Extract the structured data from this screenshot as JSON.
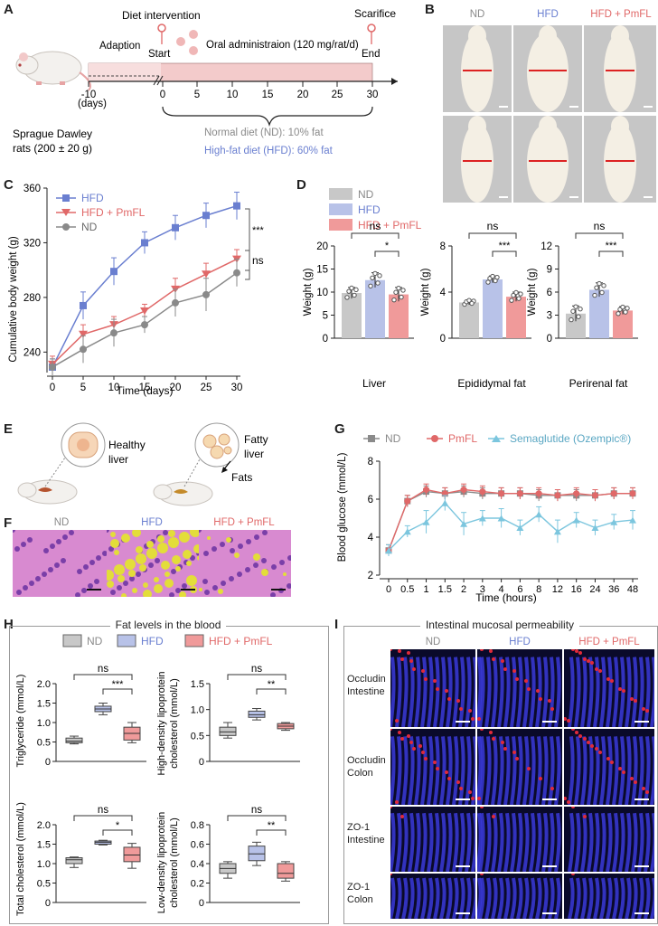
{
  "panelA": {
    "letter": "A",
    "diet_intervention": "Diet intervention",
    "scarifice": "Scarifice",
    "adaption": "Adaption",
    "start": "Start",
    "oral": "Oral administraion (120 mg/rat/d)",
    "end": "End",
    "ticks": [
      "-10",
      "0",
      "5",
      "10",
      "15",
      "20",
      "25",
      "30"
    ],
    "days": "(days)",
    "rat_label1": "Sprague Dawley",
    "rat_label2": "rats (200 ± 20 g)",
    "normal_diet": "Normal diet (ND): 10% fat",
    "high_fat": "High-fat diet (HFD): 60% fat",
    "colors": {
      "nd": "#8a8a8a",
      "hfd": "#6a7fd0",
      "pmfl": "#e06868"
    }
  },
  "panelB": {
    "letter": "B",
    "labels": [
      "ND",
      "HFD",
      "HFD + PmFL"
    ]
  },
  "panelC": {
    "letter": "C",
    "ylabel": "Cumulative body weight (g)",
    "xlabel": "Time (days)",
    "legend": [
      "HFD",
      "HFD + PmFL",
      "ND"
    ],
    "sig1": "***",
    "sig2": "ns"
  },
  "panelD": {
    "letter": "D",
    "legend": [
      "ND",
      "HFD",
      "HFD + PmFL"
    ],
    "ylabel": "Weight (g)",
    "titles": [
      "Liver",
      "Epididymal fat",
      "Perirenal fat"
    ],
    "ns": "ns",
    "sig": [
      "*",
      "***",
      "***"
    ]
  },
  "panelE": {
    "letter": "E",
    "healthy": "Healthy",
    "healthy2": "liver",
    "fatty": "Fatty",
    "fatty2": "liver",
    "fats": "Fats"
  },
  "panelF": {
    "letter": "F",
    "labels": [
      "ND",
      "HFD",
      "HFD + PmFL"
    ]
  },
  "panelG": {
    "letter": "G",
    "legend": [
      "ND",
      "PmFL",
      "Semaglutide (Ozempic®)"
    ],
    "ylabel": "Blood glucose (mmol/L)",
    "xlabel": "Time (hours)"
  },
  "panelH": {
    "letter": "H",
    "title": "Fat levels in the blood",
    "legend": [
      "ND",
      "HFD",
      "HFD + PmFL"
    ],
    "ylabels": [
      "Triglyceride (mmol/L)",
      "High-density lipoprotein",
      "cholesterol (mmol/L)",
      "Total cholesterol (mmol/L)",
      "Low-density lipoprotein",
      "cholesterol (mmol/L)"
    ],
    "ns": "ns",
    "sigs": [
      "***",
      "**",
      "*",
      "**"
    ]
  },
  "panelI": {
    "letter": "I",
    "title": "Intestinal mucosal permeability",
    "cols": [
      "ND",
      "HFD",
      "HFD + PmFL"
    ],
    "rows": [
      [
        "Occludin",
        "Intestine"
      ],
      [
        "Occludin",
        "Colon"
      ],
      [
        "ZO-1",
        "Intestine"
      ],
      [
        "ZO-1",
        "Colon"
      ]
    ]
  },
  "chart_data": [
    {
      "id": "C",
      "type": "line",
      "x": [
        0,
        5,
        10,
        15,
        20,
        25,
        30
      ],
      "xlim": [
        0,
        30
      ],
      "ylim": [
        225,
        360
      ],
      "yticks": [
        240,
        280,
        320,
        360
      ],
      "xlabel": "Time (days)",
      "ylabel": "Cumulative body weight (g)",
      "series": [
        {
          "name": "HFD",
          "values": [
            229,
            274,
            299,
            320,
            331,
            340,
            347
          ],
          "err": [
            6,
            10,
            10,
            8,
            9,
            9,
            10
          ],
          "color": "#6a7fd0"
        },
        {
          "name": "HFD + PmFL",
          "values": [
            231,
            253,
            260,
            270,
            286,
            297,
            308
          ],
          "err": [
            6,
            7,
            6,
            5,
            8,
            8,
            7
          ],
          "color": "#e06868"
        },
        {
          "name": "ND",
          "values": [
            229,
            242,
            254,
            260,
            276,
            282,
            298
          ],
          "err": [
            6,
            10,
            10,
            6,
            10,
            12,
            10
          ],
          "color": "#8a8a8a"
        }
      ]
    },
    {
      "id": "D",
      "type": "bar",
      "categories": [
        "ND",
        "HFD",
        "HFD + PmFL"
      ],
      "subplots": [
        {
          "title": "Liver",
          "ylim": [
            0,
            20
          ],
          "yticks": [
            0,
            5,
            10,
            15,
            20
          ],
          "values": [
            9.8,
            12.6,
            9.5
          ],
          "err": [
            1.2,
            1.6,
            1.5
          ]
        },
        {
          "title": "Epididymal fat",
          "ylim": [
            0,
            8
          ],
          "yticks": [
            0,
            4,
            8
          ],
          "values": [
            3.1,
            5.1,
            3.6
          ],
          "err": [
            0.2,
            0.3,
            0.4
          ]
        },
        {
          "title": "Perirenal fat",
          "ylim": [
            0,
            12
          ],
          "yticks": [
            0,
            3,
            6,
            9,
            12
          ],
          "values": [
            3.2,
            6.3,
            3.6
          ],
          "err": [
            1.0,
            0.9,
            0.5
          ]
        }
      ]
    },
    {
      "id": "G",
      "type": "line",
      "categories": [
        "0",
        "0.5",
        "1",
        "1.5",
        "2",
        "3",
        "4",
        "6",
        "8",
        "12",
        "16",
        "24",
        "36",
        "48"
      ],
      "ylim": [
        2,
        8
      ],
      "yticks": [
        2,
        4,
        6,
        8
      ],
      "xlabel": "Time (hours)",
      "ylabel": "Blood glucose (mmol/L)",
      "series": [
        {
          "name": "ND",
          "values": [
            3.3,
            5.9,
            6.4,
            6.3,
            6.4,
            6.3,
            6.3,
            6.3,
            6.2,
            6.2,
            6.2,
            6.2,
            6.3,
            6.3
          ],
          "err": [
            0.3,
            0.3,
            0.3,
            0.3,
            0.3,
            0.3,
            0.3,
            0.3,
            0.3,
            0.3,
            0.3,
            0.3,
            0.3,
            0.3
          ],
          "color": "#8a8a8a"
        },
        {
          "name": "PmFL",
          "values": [
            3.3,
            5.9,
            6.5,
            6.3,
            6.5,
            6.4,
            6.3,
            6.3,
            6.3,
            6.2,
            6.3,
            6.2,
            6.3,
            6.3
          ],
          "err": [
            0.3,
            0.3,
            0.3,
            0.3,
            0.3,
            0.3,
            0.3,
            0.3,
            0.3,
            0.3,
            0.3,
            0.3,
            0.3,
            0.3
          ],
          "color": "#e06868"
        },
        {
          "name": "Semaglutide (Ozempic®)",
          "values": [
            3.3,
            4.3,
            4.8,
            5.8,
            4.7,
            5.0,
            5.0,
            4.5,
            5.2,
            4.3,
            4.9,
            4.5,
            4.8,
            4.9
          ],
          "err": [
            0.3,
            0.3,
            0.6,
            0.4,
            0.6,
            0.4,
            0.5,
            0.4,
            0.4,
            0.6,
            0.4,
            0.4,
            0.4,
            0.5
          ],
          "color": "#7cc6de"
        }
      ]
    },
    {
      "id": "H",
      "type": "box",
      "categories": [
        "ND",
        "HFD",
        "HFD + PmFL"
      ],
      "subplots": [
        {
          "ylabel": "Triglyceride (mmol/L)",
          "ylim": [
            0,
            2.0
          ],
          "yticks": [
            "0",
            "0.5",
            "1.0",
            "1.5",
            "2.0"
          ],
          "boxes": [
            [
              0.45,
              0.48,
              0.52,
              0.6,
              0.65
            ],
            [
              1.2,
              1.28,
              1.35,
              1.42,
              1.5
            ],
            [
              0.48,
              0.55,
              0.72,
              0.88,
              1.0
            ]
          ]
        },
        {
          "ylabel": "High-density lipoprotein cholesterol (mmol/L)",
          "ylim": [
            0,
            1.5
          ],
          "yticks": [
            "0",
            "0.5",
            "1.0",
            "1.5"
          ],
          "boxes": [
            [
              0.45,
              0.5,
              0.57,
              0.66,
              0.75
            ],
            [
              0.8,
              0.85,
              0.9,
              0.97,
              1.02
            ],
            [
              0.6,
              0.63,
              0.68,
              0.73,
              0.75
            ]
          ]
        },
        {
          "ylabel": "Total cholesterol (mmol/L)",
          "ylim": [
            0,
            2.0
          ],
          "yticks": [
            "0",
            "0.5",
            "1.0",
            "1.5",
            "2.0"
          ],
          "boxes": [
            [
              0.9,
              1.0,
              1.1,
              1.15,
              1.17
            ],
            [
              1.48,
              1.5,
              1.55,
              1.58,
              1.6
            ],
            [
              0.88,
              1.05,
              1.22,
              1.42,
              1.52
            ]
          ]
        },
        {
          "ylabel": "Low-density lipoprotein cholesterol (mmol/L)",
          "ylim": [
            0,
            0.8
          ],
          "yticks": [
            "0",
            "0.2",
            "0.4",
            "0.6",
            "0.8"
          ],
          "boxes": [
            [
              0.25,
              0.3,
              0.35,
              0.4,
              0.42
            ],
            [
              0.38,
              0.43,
              0.5,
              0.58,
              0.62
            ],
            [
              0.22,
              0.25,
              0.3,
              0.4,
              0.42
            ]
          ]
        }
      ]
    }
  ]
}
